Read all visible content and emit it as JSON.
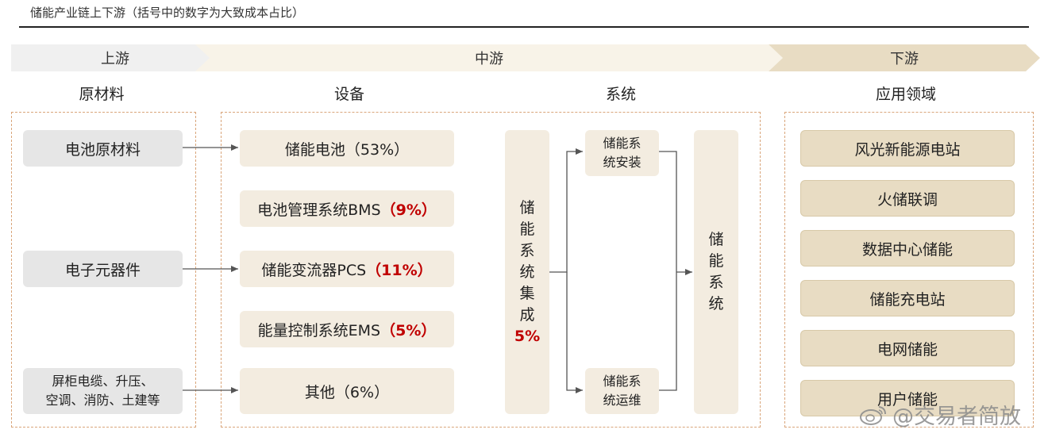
{
  "title": "储能产业链上下游（括号中的数字为大致成本占比）",
  "stages": {
    "upstream": "上游",
    "midstream": "中游",
    "downstream": "下游"
  },
  "columns": {
    "raw": "原材料",
    "equipment": "设备",
    "system": "系统",
    "application": "应用领域"
  },
  "raw_materials": [
    {
      "line1": "电池原材料",
      "line2": ""
    },
    {
      "line1": "电子元器件",
      "line2": ""
    },
    {
      "line1": "屏柜电缆、升压、",
      "line2": "空调、消防、土建等"
    }
  ],
  "equipment": [
    {
      "name": "储能电池",
      "pct": "（53%）",
      "pct_red": false
    },
    {
      "name": "电池管理系统BMS",
      "pct": "（9%）",
      "pct_red": true
    },
    {
      "name": "储能变流器PCS",
      "pct": "（11%）",
      "pct_red": true
    },
    {
      "name": "能量控制系统EMS",
      "pct": "（5%）",
      "pct_red": true
    },
    {
      "name": "其他",
      "pct": "（6%）",
      "pct_red": false
    }
  ],
  "integration": {
    "chars": [
      "储",
      "能",
      "系",
      "统",
      "集",
      "成"
    ],
    "pct": "5%"
  },
  "install": {
    "line1": "储能系",
    "line2": "统安装"
  },
  "maintain": {
    "line1": "储能系",
    "line2": "统运维"
  },
  "system_box": {
    "chars": [
      "储",
      "能",
      "系",
      "统"
    ]
  },
  "applications": [
    "风光新能源电站",
    "火储联调",
    "数据中心储能",
    "储能充电站",
    "电网储能",
    "用户储能"
  ],
  "watermark": "@交易者简放",
  "colors": {
    "accent_red": "#c00000",
    "frame_dash": "#d9a57a",
    "app_fill": "#e8dcc3",
    "equip_fill": "#f3ece0",
    "raw_fill": "#e6e6e6"
  }
}
